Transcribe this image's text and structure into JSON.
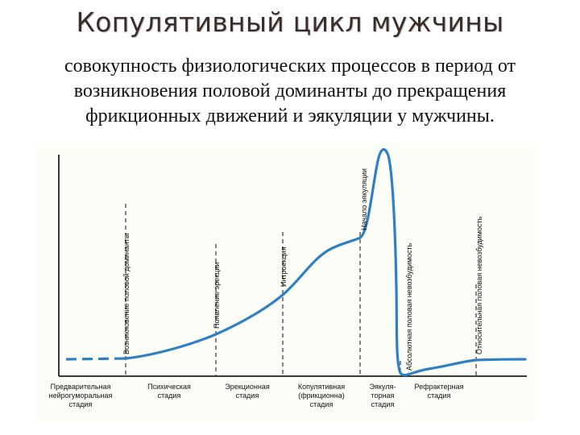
{
  "title": "Копулятивный цикл мужчины",
  "subtitle_lines": [
    "совокупность физиологических процессов в период от",
    "возникновения половой доминанты до прекращения",
    "фрикционных движений и эякуляции у мужчины."
  ],
  "colors": {
    "curve": "#2f7fc6",
    "axis": "#222222",
    "background": "#fdfdf7",
    "title": "#3a2d28"
  },
  "event_labels": [
    "Возникновение половой доминанты",
    "Появление эрекции",
    "Интроекция",
    "Начало эякуляции",
    "Абсолютная половая невозбудимость",
    "Относительная половая невозбудимость"
  ],
  "stage_labels": [
    [
      "Предварительная",
      "нейрогуморальная",
      "стадия"
    ],
    [
      "Психическая",
      "стадия"
    ],
    [
      "Эрекционная",
      "стадия"
    ],
    [
      "Копулятивная",
      "(фрикционна)",
      "стадия"
    ],
    [
      "Эякуля-",
      "торная",
      "стадия"
    ],
    [
      "Рефрактерная",
      "стадия"
    ]
  ]
}
